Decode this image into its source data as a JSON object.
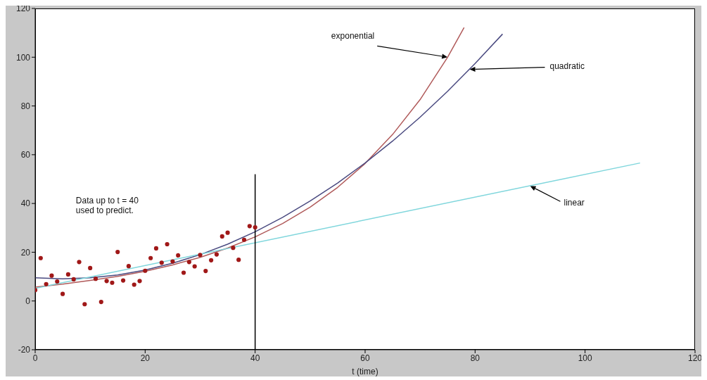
{
  "chart_data": {
    "type": "line",
    "xlabel": "t (time)",
    "xlim": [
      0,
      120
    ],
    "xticks": [
      0,
      20,
      40,
      60,
      80,
      100,
      120
    ],
    "ylim": [
      -20,
      120
    ],
    "yticks": [
      -20,
      0,
      20,
      40,
      60,
      80,
      100,
      120
    ],
    "grid": false,
    "series": [
      {
        "type": "scatter",
        "marker": "circle",
        "color": "#a01818",
        "x": [
          0,
          1,
          2,
          3,
          4,
          5,
          6,
          7,
          8,
          9,
          10,
          11,
          12,
          13,
          14,
          15,
          16,
          17,
          18,
          19,
          20,
          21,
          22,
          23,
          24,
          25,
          26,
          27,
          28,
          29,
          30,
          31,
          32,
          33,
          34,
          35,
          36,
          37,
          38,
          39,
          40
        ],
        "values": [
          4.5,
          17.6,
          6.9,
          10.4,
          8,
          2.9,
          10.9,
          8.9,
          16,
          -1.3,
          13.5,
          9.1,
          -0.4,
          8.2,
          7.5,
          20.1,
          8.4,
          14.3,
          6.7,
          8.2,
          12.4,
          17.6,
          21.6,
          15.7,
          23.3,
          16.2,
          18.7,
          11.6,
          16,
          14.2,
          18.9,
          12.3,
          16.7,
          19.1,
          26.5,
          28,
          21.8,
          16.9,
          25.1,
          30.7,
          30.2
        ]
      },
      {
        "color": "#b05a5a",
        "x": [
          0,
          5,
          10,
          15,
          20,
          25,
          30,
          35,
          40,
          45,
          50,
          55,
          60,
          65,
          70,
          75,
          78
        ],
        "values": [
          5.7,
          6.9,
          8.4,
          10.1,
          12.2,
          14.8,
          17.9,
          21.7,
          26.3,
          31.8,
          38.5,
          46.6,
          56.4,
          68.3,
          82.6,
          100,
          112.2
        ]
      },
      {
        "color": "#4a4a80",
        "x": [
          0,
          5,
          10,
          15,
          20,
          25,
          30,
          35,
          40,
          45,
          50,
          55,
          60,
          65,
          70,
          75,
          80,
          85
        ],
        "values": [
          9.5,
          9.1,
          9.5,
          10.7,
          12.7,
          15.5,
          19,
          23.3,
          28.4,
          34.3,
          41,
          48.4,
          56.6,
          65.6,
          75.4,
          86,
          97.4,
          109.5
        ]
      },
      {
        "color": "#7fd6dc",
        "x": [
          0,
          110
        ],
        "values": [
          5.2,
          56.6
        ]
      },
      {
        "color": "#000000",
        "x": [
          40,
          40
        ],
        "values": [
          -20,
          52
        ]
      }
    ],
    "annotations": [
      {
        "text": "exponential",
        "x": 75,
        "y": 100
      },
      {
        "text": "quadratic",
        "x": 79,
        "y": 95
      },
      {
        "text": "linear",
        "x": 90,
        "y": 47.2
      },
      "Data up to t = 40\nused to predict."
    ]
  }
}
